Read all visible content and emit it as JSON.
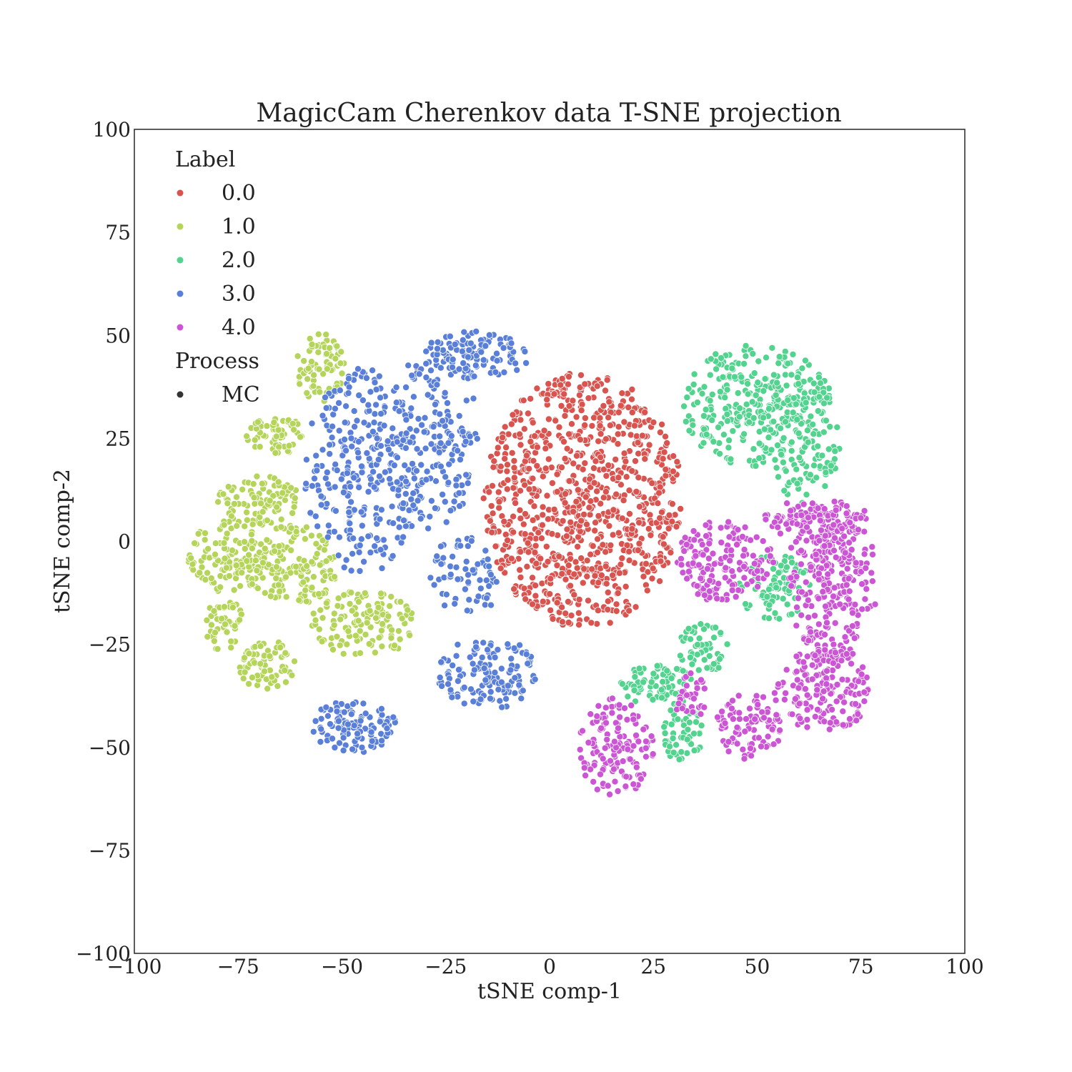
{
  "chart_data": {
    "type": "scatter",
    "title": "MagicCam Cherenkov data T-SNE projection",
    "xlabel": "tSNE comp-1",
    "ylabel": "tSNE comp-2",
    "xlim": [
      -100,
      100
    ],
    "ylim": [
      -100,
      100
    ],
    "xticks": [
      -100,
      -75,
      -50,
      -25,
      0,
      25,
      50,
      75,
      100
    ],
    "yticks": [
      -100,
      -75,
      -50,
      -25,
      0,
      25,
      50,
      75,
      100
    ],
    "xtick_labels": [
      "−100",
      "−75",
      "−50",
      "−25",
      "0",
      "25",
      "50",
      "75",
      "100"
    ],
    "ytick_labels": [
      "−100",
      "−75",
      "−50",
      "−25",
      "0",
      "25",
      "50",
      "75",
      "100"
    ],
    "grid": false,
    "legend": {
      "placement": "top-left",
      "label_title": "Label",
      "label_entries": [
        {
          "name": "0.0",
          "color": "#d9534f"
        },
        {
          "name": "1.0",
          "color": "#b5d55a"
        },
        {
          "name": "2.0",
          "color": "#52d38e"
        },
        {
          "name": "3.0",
          "color": "#5a7fd9"
        },
        {
          "name": "4.0",
          "color": "#cc55d6"
        }
      ],
      "process_title": "Process",
      "process_entries": [
        {
          "name": "MC",
          "color": "#333333"
        }
      ]
    },
    "series": [
      {
        "name": "0.0",
        "color": "#d9534f",
        "clusters": [
          {
            "cx": 8,
            "cy": 10,
            "rx": 24,
            "ry": 31,
            "n": 900,
            "shape": "blob"
          }
        ]
      },
      {
        "name": "1.0",
        "color": "#b5d55a",
        "clusters": [
          {
            "cx": -55,
            "cy": 42,
            "rx": 6,
            "ry": 9,
            "n": 80
          },
          {
            "cx": -66,
            "cy": 26,
            "rx": 7,
            "ry": 5,
            "n": 60
          },
          {
            "cx": -70,
            "cy": 10,
            "rx": 10,
            "ry": 6,
            "n": 90
          },
          {
            "cx": -78,
            "cy": -4,
            "rx": 9,
            "ry": 9,
            "n": 110
          },
          {
            "cx": -62,
            "cy": -6,
            "rx": 11,
            "ry": 10,
            "n": 150
          },
          {
            "cx": -78,
            "cy": -20,
            "rx": 5,
            "ry": 7,
            "n": 50
          },
          {
            "cx": -68,
            "cy": -30,
            "rx": 7,
            "ry": 6,
            "n": 70
          },
          {
            "cx": -45,
            "cy": -20,
            "rx": 13,
            "ry": 8,
            "n": 130
          }
        ]
      },
      {
        "name": "3.0",
        "color": "#5a7fd9",
        "clusters": [
          {
            "cx": -45,
            "cy": 17,
            "rx": 14,
            "ry": 25,
            "n": 300
          },
          {
            "cx": -28,
            "cy": 25,
            "rx": 11,
            "ry": 22,
            "n": 180
          },
          {
            "cx": -18,
            "cy": 45,
            "rx": 13,
            "ry": 6,
            "n": 110
          },
          {
            "cx": -20,
            "cy": -8,
            "rx": 9,
            "ry": 10,
            "n": 70
          },
          {
            "cx": -15,
            "cy": -32,
            "rx": 12,
            "ry": 9,
            "n": 140
          },
          {
            "cx": -47,
            "cy": -45,
            "rx": 10,
            "ry": 7,
            "n": 110
          }
        ]
      },
      {
        "name": "2.0",
        "color": "#52d38e",
        "clusters": [
          {
            "cx": 50,
            "cy": 33,
            "rx": 18,
            "ry": 15,
            "n": 300
          },
          {
            "cx": 60,
            "cy": 25,
            "rx": 10,
            "ry": 16,
            "n": 120
          },
          {
            "cx": 54,
            "cy": -11,
            "rx": 9,
            "ry": 8,
            "n": 80
          },
          {
            "cx": 37,
            "cy": -26,
            "rx": 6,
            "ry": 6,
            "n": 50
          },
          {
            "cx": 26,
            "cy": -35,
            "rx": 9,
            "ry": 5,
            "n": 70
          },
          {
            "cx": 32,
            "cy": -46,
            "rx": 5,
            "ry": 8,
            "n": 60
          }
        ]
      },
      {
        "name": "4.0",
        "color": "#cc55d6",
        "clusters": [
          {
            "cx": 68,
            "cy": -10,
            "rx": 11,
            "ry": 20,
            "n": 260
          },
          {
            "cx": 64,
            "cy": 5,
            "rx": 14,
            "ry": 5,
            "n": 110
          },
          {
            "cx": 42,
            "cy": -5,
            "rx": 12,
            "ry": 10,
            "n": 160
          },
          {
            "cx": 66,
            "cy": -36,
            "rx": 12,
            "ry": 10,
            "n": 170
          },
          {
            "cx": 48,
            "cy": -45,
            "rx": 8,
            "ry": 8,
            "n": 90
          },
          {
            "cx": 16,
            "cy": -50,
            "rx": 9,
            "ry": 12,
            "n": 140
          },
          {
            "cx": 34,
            "cy": -38,
            "rx": 4,
            "ry": 6,
            "n": 30
          }
        ]
      }
    ]
  }
}
